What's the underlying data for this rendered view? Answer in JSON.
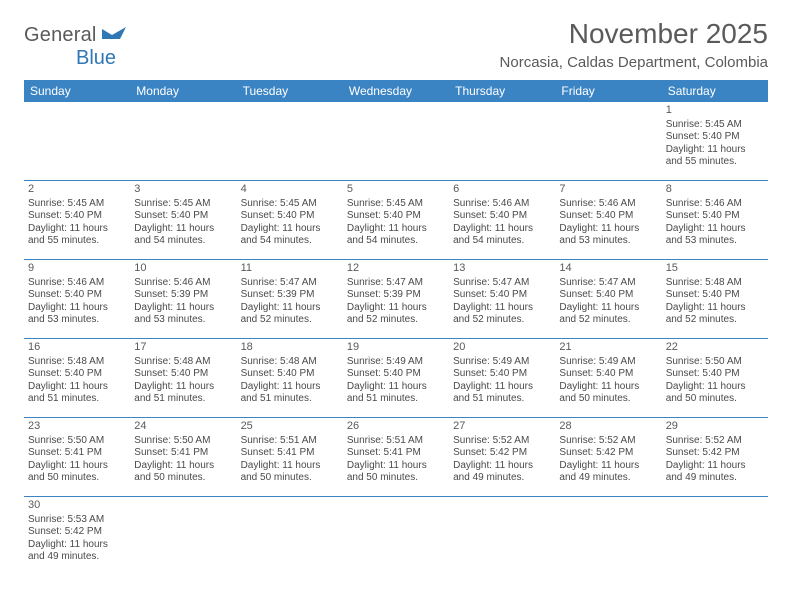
{
  "logo": {
    "general": "General",
    "blue": "Blue"
  },
  "title": "November 2025",
  "location": "Norcasia, Caldas Department, Colombia",
  "colors": {
    "header_bg": "#3b84c4",
    "header_text": "#ffffff",
    "body_text": "#4a4a4a",
    "title_text": "#5a5a5a",
    "logo_blue": "#2f78b5",
    "border": "#3b84c4",
    "background": "#ffffff"
  },
  "days_of_week": [
    "Sunday",
    "Monday",
    "Tuesday",
    "Wednesday",
    "Thursday",
    "Friday",
    "Saturday"
  ],
  "weeks": [
    [
      null,
      null,
      null,
      null,
      null,
      null,
      {
        "n": "1",
        "sr": "5:45 AM",
        "ss": "5:40 PM",
        "dl": "11 hours and 55 minutes."
      }
    ],
    [
      {
        "n": "2",
        "sr": "5:45 AM",
        "ss": "5:40 PM",
        "dl": "11 hours and 55 minutes."
      },
      {
        "n": "3",
        "sr": "5:45 AM",
        "ss": "5:40 PM",
        "dl": "11 hours and 54 minutes."
      },
      {
        "n": "4",
        "sr": "5:45 AM",
        "ss": "5:40 PM",
        "dl": "11 hours and 54 minutes."
      },
      {
        "n": "5",
        "sr": "5:45 AM",
        "ss": "5:40 PM",
        "dl": "11 hours and 54 minutes."
      },
      {
        "n": "6",
        "sr": "5:46 AM",
        "ss": "5:40 PM",
        "dl": "11 hours and 54 minutes."
      },
      {
        "n": "7",
        "sr": "5:46 AM",
        "ss": "5:40 PM",
        "dl": "11 hours and 53 minutes."
      },
      {
        "n": "8",
        "sr": "5:46 AM",
        "ss": "5:40 PM",
        "dl": "11 hours and 53 minutes."
      }
    ],
    [
      {
        "n": "9",
        "sr": "5:46 AM",
        "ss": "5:40 PM",
        "dl": "11 hours and 53 minutes."
      },
      {
        "n": "10",
        "sr": "5:46 AM",
        "ss": "5:39 PM",
        "dl": "11 hours and 53 minutes."
      },
      {
        "n": "11",
        "sr": "5:47 AM",
        "ss": "5:39 PM",
        "dl": "11 hours and 52 minutes."
      },
      {
        "n": "12",
        "sr": "5:47 AM",
        "ss": "5:39 PM",
        "dl": "11 hours and 52 minutes."
      },
      {
        "n": "13",
        "sr": "5:47 AM",
        "ss": "5:40 PM",
        "dl": "11 hours and 52 minutes."
      },
      {
        "n": "14",
        "sr": "5:47 AM",
        "ss": "5:40 PM",
        "dl": "11 hours and 52 minutes."
      },
      {
        "n": "15",
        "sr": "5:48 AM",
        "ss": "5:40 PM",
        "dl": "11 hours and 52 minutes."
      }
    ],
    [
      {
        "n": "16",
        "sr": "5:48 AM",
        "ss": "5:40 PM",
        "dl": "11 hours and 51 minutes."
      },
      {
        "n": "17",
        "sr": "5:48 AM",
        "ss": "5:40 PM",
        "dl": "11 hours and 51 minutes."
      },
      {
        "n": "18",
        "sr": "5:48 AM",
        "ss": "5:40 PM",
        "dl": "11 hours and 51 minutes."
      },
      {
        "n": "19",
        "sr": "5:49 AM",
        "ss": "5:40 PM",
        "dl": "11 hours and 51 minutes."
      },
      {
        "n": "20",
        "sr": "5:49 AM",
        "ss": "5:40 PM",
        "dl": "11 hours and 51 minutes."
      },
      {
        "n": "21",
        "sr": "5:49 AM",
        "ss": "5:40 PM",
        "dl": "11 hours and 50 minutes."
      },
      {
        "n": "22",
        "sr": "5:50 AM",
        "ss": "5:40 PM",
        "dl": "11 hours and 50 minutes."
      }
    ],
    [
      {
        "n": "23",
        "sr": "5:50 AM",
        "ss": "5:41 PM",
        "dl": "11 hours and 50 minutes."
      },
      {
        "n": "24",
        "sr": "5:50 AM",
        "ss": "5:41 PM",
        "dl": "11 hours and 50 minutes."
      },
      {
        "n": "25",
        "sr": "5:51 AM",
        "ss": "5:41 PM",
        "dl": "11 hours and 50 minutes."
      },
      {
        "n": "26",
        "sr": "5:51 AM",
        "ss": "5:41 PM",
        "dl": "11 hours and 50 minutes."
      },
      {
        "n": "27",
        "sr": "5:52 AM",
        "ss": "5:42 PM",
        "dl": "11 hours and 49 minutes."
      },
      {
        "n": "28",
        "sr": "5:52 AM",
        "ss": "5:42 PM",
        "dl": "11 hours and 49 minutes."
      },
      {
        "n": "29",
        "sr": "5:52 AM",
        "ss": "5:42 PM",
        "dl": "11 hours and 49 minutes."
      }
    ],
    [
      {
        "n": "30",
        "sr": "5:53 AM",
        "ss": "5:42 PM",
        "dl": "11 hours and 49 minutes."
      },
      null,
      null,
      null,
      null,
      null,
      null
    ]
  ],
  "labels": {
    "sunrise": "Sunrise:",
    "sunset": "Sunset:",
    "daylight": "Daylight:"
  }
}
